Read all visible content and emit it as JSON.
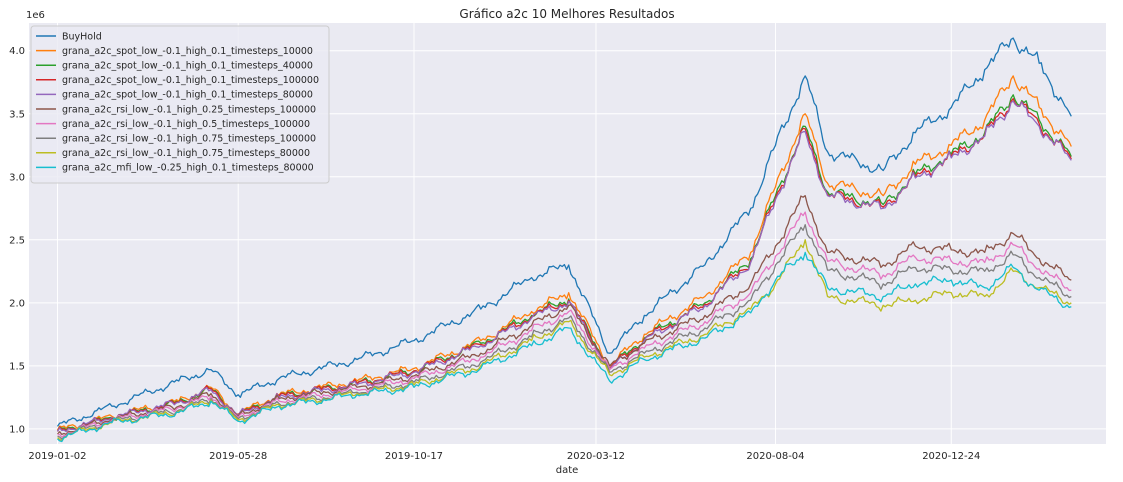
{
  "chart_data": {
    "type": "line",
    "title": "Gráfico a2c 10 Melhores Resultados",
    "xlabel": "date",
    "ylabel": "",
    "y_scale_label": "1e6",
    "y_scale": 1000000,
    "ylim": [
      0.88,
      4.22
    ],
    "yticks": [
      1.0,
      1.5,
      2.0,
      2.5,
      3.0,
      3.5,
      4.0
    ],
    "ytick_labels": [
      "1.0",
      "1.5",
      "2.0",
      "2.5",
      "3.0",
      "3.5",
      "4.0"
    ],
    "xlim": [
      "2018-12-10",
      "2021-04-28"
    ],
    "xticks": [
      "2019-01-02",
      "2019-05-28",
      "2019-10-17",
      "2020-03-12",
      "2020-08-04",
      "2020-12-24"
    ],
    "xtick_labels": [
      "2019-01-02",
      "2019-05-28",
      "2019-10-17",
      "2020-03-12",
      "2020-08-04",
      "2020-12-24"
    ],
    "grid": true,
    "legend_position": "top-left",
    "background": "#eaeaf2",
    "series": [
      {
        "name": "BuyHold",
        "color": "#1f77b4",
        "x": [
          "2019-01-02",
          "2019-02-15",
          "2019-04-10",
          "2019-05-06",
          "2019-05-28",
          "2019-06-30",
          "2019-09-01",
          "2019-10-17",
          "2019-12-10",
          "2020-01-20",
          "2020-02-19",
          "2020-03-23",
          "2020-04-20",
          "2020-06-08",
          "2020-07-15",
          "2020-08-04",
          "2020-08-28",
          "2020-09-15",
          "2020-10-30",
          "2020-11-25",
          "2020-12-24",
          "2021-01-20",
          "2021-02-12",
          "2021-03-05",
          "2021-03-31"
        ],
        "values": [
          1.02,
          1.18,
          1.38,
          1.47,
          1.27,
          1.4,
          1.55,
          1.7,
          1.95,
          2.2,
          2.3,
          1.6,
          1.9,
          2.3,
          2.75,
          3.25,
          3.8,
          3.2,
          3.05,
          3.35,
          3.55,
          3.85,
          4.1,
          3.9,
          3.48
        ]
      },
      {
        "name": "grana_a2c_spot_low_-0.1_high_0.1_timesteps_10000",
        "color": "#ff7f0e",
        "x": [
          "2019-01-02",
          "2019-02-15",
          "2019-04-10",
          "2019-05-06",
          "2019-05-28",
          "2019-06-30",
          "2019-09-01",
          "2019-10-17",
          "2019-12-10",
          "2020-01-20",
          "2020-02-19",
          "2020-03-23",
          "2020-04-20",
          "2020-06-08",
          "2020-07-15",
          "2020-08-04",
          "2020-08-28",
          "2020-09-15",
          "2020-10-30",
          "2020-11-25",
          "2020-12-24",
          "2021-01-20",
          "2021-02-12",
          "2021-03-05",
          "2021-03-31"
        ],
        "values": [
          0.99,
          1.1,
          1.22,
          1.33,
          1.12,
          1.27,
          1.38,
          1.48,
          1.7,
          1.93,
          2.08,
          1.5,
          1.75,
          2.05,
          2.4,
          2.92,
          3.5,
          2.95,
          2.85,
          3.1,
          3.25,
          3.45,
          3.8,
          3.55,
          3.24
        ]
      },
      {
        "name": "grana_a2c_spot_low_-0.1_high_0.1_timesteps_40000",
        "color": "#2ca02c",
        "x": [
          "2019-01-02",
          "2019-02-15",
          "2019-04-10",
          "2019-05-06",
          "2019-05-28",
          "2019-06-30",
          "2019-09-01",
          "2019-10-17",
          "2019-12-10",
          "2020-01-20",
          "2020-02-19",
          "2020-03-23",
          "2020-04-20",
          "2020-06-08",
          "2020-07-15",
          "2020-08-04",
          "2020-08-28",
          "2020-09-15",
          "2020-10-30",
          "2020-11-25",
          "2020-12-24",
          "2021-01-20",
          "2021-02-12",
          "2021-03-05",
          "2021-03-31"
        ],
        "values": [
          0.98,
          1.09,
          1.21,
          1.32,
          1.11,
          1.26,
          1.36,
          1.46,
          1.68,
          1.9,
          2.03,
          1.48,
          1.72,
          2.0,
          2.35,
          2.85,
          3.4,
          2.88,
          2.78,
          3.02,
          3.18,
          3.35,
          3.65,
          3.45,
          3.16
        ]
      },
      {
        "name": "grana_a2c_spot_low_-0.1_high_0.1_timesteps_100000",
        "color": "#d62728",
        "x": [
          "2019-01-02",
          "2019-02-15",
          "2019-04-10",
          "2019-05-06",
          "2019-05-28",
          "2019-06-30",
          "2019-09-01",
          "2019-10-17",
          "2019-12-10",
          "2020-01-20",
          "2020-02-19",
          "2020-03-23",
          "2020-04-20",
          "2020-06-08",
          "2020-07-15",
          "2020-08-04",
          "2020-08-28",
          "2020-09-15",
          "2020-10-30",
          "2020-11-25",
          "2020-12-24",
          "2021-01-20",
          "2021-02-12",
          "2021-03-05",
          "2021-03-31"
        ],
        "values": [
          0.98,
          1.09,
          1.21,
          1.32,
          1.11,
          1.26,
          1.36,
          1.46,
          1.67,
          1.89,
          2.02,
          1.48,
          1.71,
          1.99,
          2.33,
          2.83,
          3.38,
          2.86,
          2.76,
          3.0,
          3.16,
          3.33,
          3.62,
          3.42,
          3.14
        ]
      },
      {
        "name": "grana_a2c_spot_low_-0.1_high_0.1_timesteps_80000",
        "color": "#9467bd",
        "x": [
          "2019-01-02",
          "2019-02-15",
          "2019-04-10",
          "2019-05-06",
          "2019-05-28",
          "2019-06-30",
          "2019-09-01",
          "2019-10-17",
          "2019-12-10",
          "2020-01-20",
          "2020-02-19",
          "2020-03-23",
          "2020-04-20",
          "2020-06-08",
          "2020-07-15",
          "2020-08-04",
          "2020-08-28",
          "2020-09-15",
          "2020-10-30",
          "2020-11-25",
          "2020-12-24",
          "2021-01-20",
          "2021-02-12",
          "2021-03-05",
          "2021-03-31"
        ],
        "values": [
          0.98,
          1.09,
          1.21,
          1.31,
          1.11,
          1.25,
          1.35,
          1.45,
          1.66,
          1.88,
          2.01,
          1.47,
          1.7,
          1.98,
          2.32,
          2.82,
          3.36,
          2.85,
          2.75,
          2.99,
          3.15,
          3.32,
          3.6,
          3.4,
          3.13
        ]
      },
      {
        "name": "grana_a2c_rsi_low_-0.1_high_0.25_timesteps_100000",
        "color": "#8c564b",
        "x": [
          "2019-01-02",
          "2019-02-15",
          "2019-04-10",
          "2019-05-06",
          "2019-05-28",
          "2019-06-30",
          "2019-09-01",
          "2019-10-17",
          "2019-12-10",
          "2020-01-20",
          "2020-02-19",
          "2020-03-23",
          "2020-04-20",
          "2020-06-08",
          "2020-07-15",
          "2020-08-04",
          "2020-08-28",
          "2020-09-15",
          "2020-10-30",
          "2020-11-25",
          "2020-12-24",
          "2021-01-20",
          "2021-02-12",
          "2021-03-05",
          "2021-03-31"
        ],
        "values": [
          0.96,
          1.08,
          1.18,
          1.28,
          1.1,
          1.24,
          1.33,
          1.42,
          1.6,
          1.82,
          1.98,
          1.5,
          1.68,
          1.9,
          2.15,
          2.45,
          2.85,
          2.4,
          2.3,
          2.45,
          2.42,
          2.4,
          2.55,
          2.35,
          2.18
        ]
      },
      {
        "name": "grana_a2c_rsi_low_-0.1_high_0.5_timesteps_100000",
        "color": "#e377c2",
        "x": [
          "2019-01-02",
          "2019-02-15",
          "2019-04-10",
          "2019-05-06",
          "2019-05-28",
          "2019-06-30",
          "2019-09-01",
          "2019-10-17",
          "2019-12-10",
          "2020-01-20",
          "2020-02-19",
          "2020-03-23",
          "2020-04-20",
          "2020-06-08",
          "2020-07-15",
          "2020-08-04",
          "2020-08-28",
          "2020-09-15",
          "2020-10-30",
          "2020-11-25",
          "2020-12-24",
          "2021-01-20",
          "2021-02-12",
          "2021-03-05",
          "2021-03-31"
        ],
        "values": [
          0.95,
          1.07,
          1.17,
          1.26,
          1.09,
          1.22,
          1.31,
          1.4,
          1.57,
          1.78,
          1.93,
          1.47,
          1.64,
          1.85,
          2.08,
          2.37,
          2.72,
          2.33,
          2.22,
          2.36,
          2.33,
          2.32,
          2.46,
          2.27,
          2.1
        ]
      },
      {
        "name": "grana_a2c_rsi_low_-0.1_high_0.75_timesteps_100000",
        "color": "#7f7f7f",
        "x": [
          "2019-01-02",
          "2019-02-15",
          "2019-04-10",
          "2019-05-06",
          "2019-05-28",
          "2019-06-30",
          "2019-09-01",
          "2019-10-17",
          "2019-12-10",
          "2020-01-20",
          "2020-02-19",
          "2020-03-23",
          "2020-04-20",
          "2020-06-08",
          "2020-07-15",
          "2020-08-04",
          "2020-08-28",
          "2020-09-15",
          "2020-10-30",
          "2020-11-25",
          "2020-12-24",
          "2021-01-20",
          "2021-02-12",
          "2021-03-05",
          "2021-03-31"
        ],
        "values": [
          0.94,
          1.06,
          1.15,
          1.24,
          1.08,
          1.2,
          1.29,
          1.37,
          1.53,
          1.73,
          1.88,
          1.45,
          1.6,
          1.8,
          2.02,
          2.3,
          2.62,
          2.26,
          2.15,
          2.28,
          2.26,
          2.25,
          2.38,
          2.2,
          2.05
        ]
      },
      {
        "name": "grana_a2c_rsi_low_-0.1_high_0.75_timesteps_80000",
        "color": "#bcbd22",
        "x": [
          "2019-01-02",
          "2019-02-15",
          "2019-04-10",
          "2019-05-06",
          "2019-05-28",
          "2019-06-30",
          "2019-09-01",
          "2019-10-17",
          "2019-12-10",
          "2020-01-20",
          "2020-02-19",
          "2020-03-23",
          "2020-04-20",
          "2020-06-08",
          "2020-07-15",
          "2020-08-04",
          "2020-08-28",
          "2020-09-15",
          "2020-10-30",
          "2020-11-25",
          "2020-12-24",
          "2021-01-20",
          "2021-02-12",
          "2021-03-05",
          "2021-03-31"
        ],
        "values": [
          0.93,
          1.05,
          1.14,
          1.23,
          1.07,
          1.19,
          1.28,
          1.35,
          1.5,
          1.7,
          1.85,
          1.43,
          1.57,
          1.75,
          1.95,
          2.15,
          2.5,
          2.05,
          1.98,
          2.02,
          2.08,
          2.05,
          2.25,
          2.12,
          2.0
        ]
      },
      {
        "name": "grana_a2c_mfi_low_-0.25_high_0.1_timesteps_80000",
        "color": "#17becf",
        "x": [
          "2019-01-02",
          "2019-02-15",
          "2019-04-10",
          "2019-05-06",
          "2019-05-28",
          "2019-06-30",
          "2019-09-01",
          "2019-10-17",
          "2019-12-10",
          "2020-01-20",
          "2020-02-19",
          "2020-03-23",
          "2020-04-20",
          "2020-06-08",
          "2020-07-15",
          "2020-08-04",
          "2020-08-28",
          "2020-09-15",
          "2020-10-30",
          "2020-11-25",
          "2020-12-24",
          "2021-01-20",
          "2021-02-12",
          "2021-03-05",
          "2021-03-31"
        ],
        "values": [
          0.92,
          1.05,
          1.13,
          1.22,
          1.06,
          1.18,
          1.27,
          1.33,
          1.48,
          1.66,
          1.8,
          1.38,
          1.55,
          1.72,
          1.92,
          2.18,
          2.4,
          2.12,
          2.05,
          2.15,
          2.18,
          2.12,
          2.28,
          2.1,
          1.97
        ]
      }
    ]
  }
}
